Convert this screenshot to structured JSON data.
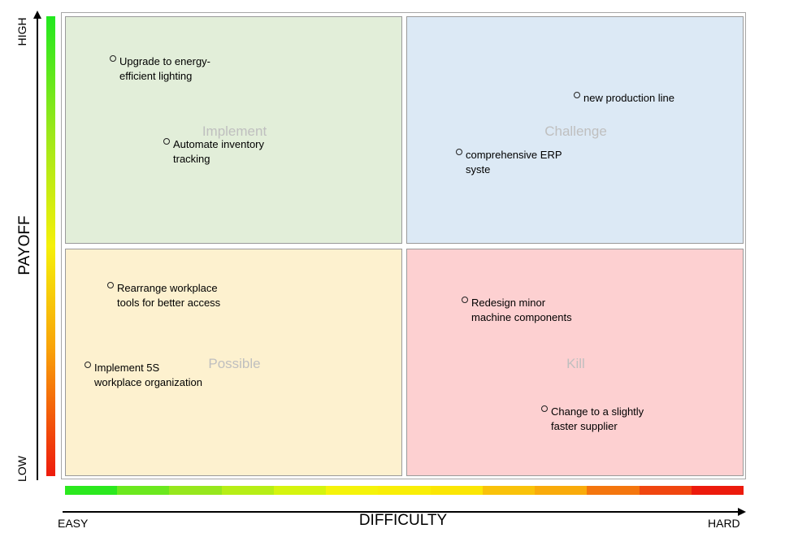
{
  "axes": {
    "y_high": "HIGH",
    "y_low": "LOW",
    "y_title": "PAYOFF",
    "x_easy": "EASY",
    "x_hard": "HARD",
    "x_title": "DIFFICULTY"
  },
  "colors": {
    "implement_fill": "#e2eed9",
    "challenge_fill": "#dce9f5",
    "possible_fill": "#fdf1cf",
    "kill_fill": "#fdd0d1",
    "quadrant_title": "#bfbfbf"
  },
  "difficulty_scale_colors": [
    "#2be81e",
    "#6be81e",
    "#96e71d",
    "#b6ee16",
    "#d5f40e",
    "#f5f30a",
    "#f9ee07",
    "#fbe604",
    "#f9c20a",
    "#f9ab0b",
    "#f4760e",
    "#f0460f",
    "#ec1a0c"
  ],
  "quadrants": {
    "implement": {
      "title": "Implement",
      "items": [
        {
          "label": "Upgrade to energy-\nefficient lighting"
        },
        {
          "label": "Automate inventory\ntracking"
        }
      ]
    },
    "challenge": {
      "title": "Challenge",
      "items": [
        {
          "label": "new production line"
        },
        {
          "label": "comprehensive ERP\nsyste"
        }
      ]
    },
    "possible": {
      "title": "Possible",
      "items": [
        {
          "label": "Rearrange workplace\ntools for better access"
        },
        {
          "label": "Implement 5S\nworkplace organization"
        }
      ]
    },
    "kill": {
      "title": "Kill",
      "items": [
        {
          "label": "Redesign minor\nmachine components"
        },
        {
          "label": "Change to a slightly\nfaster supplier"
        }
      ]
    }
  }
}
